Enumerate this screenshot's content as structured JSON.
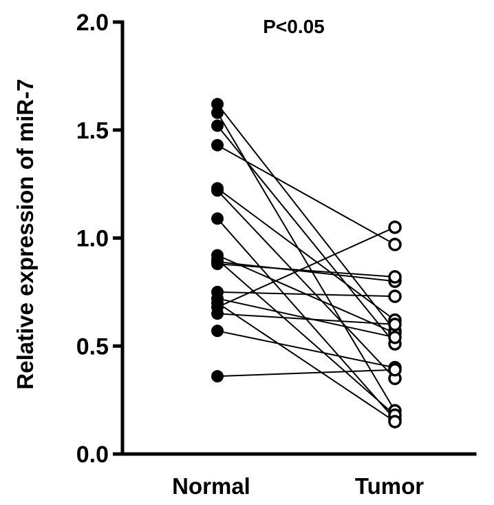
{
  "chart_data": {
    "type": "scatter",
    "subtype": "paired-dot-plot",
    "title": "",
    "annotation": "P<0.05",
    "xlabel": "",
    "ylabel": "Relative expression of miR-7",
    "categories": [
      "Normal",
      "Tumor"
    ],
    "ylim": [
      0,
      2.0
    ],
    "yticks": [
      0.0,
      0.5,
      1.0,
      1.5,
      2.0
    ],
    "ytick_labels": [
      "0.0",
      "0.5",
      "1.0",
      "1.5",
      "2.0"
    ],
    "grid": false,
    "legend": "none",
    "marker_styles": {
      "Normal": "filled-circle",
      "Tumor": "open-circle"
    },
    "color": "#000000",
    "pairs": [
      {
        "normal": 1.62,
        "tumor": 0.57
      },
      {
        "normal": 1.58,
        "tumor": 0.2
      },
      {
        "normal": 1.52,
        "tumor": 0.51
      },
      {
        "normal": 1.43,
        "tumor": 0.97
      },
      {
        "normal": 1.23,
        "tumor": 0.62
      },
      {
        "normal": 1.22,
        "tumor": 0.35
      },
      {
        "normal": 1.09,
        "tumor": 0.16
      },
      {
        "normal": 0.92,
        "tumor": 0.56
      },
      {
        "normal": 0.9,
        "tumor": 0.18
      },
      {
        "normal": 0.89,
        "tumor": 0.8
      },
      {
        "normal": 0.88,
        "tumor": 0.82
      },
      {
        "normal": 0.75,
        "tumor": 0.73
      },
      {
        "normal": 0.72,
        "tumor": 0.54
      },
      {
        "normal": 0.7,
        "tumor": 0.15
      },
      {
        "normal": 0.68,
        "tumor": 1.05
      },
      {
        "normal": 0.65,
        "tumor": 0.6
      },
      {
        "normal": 0.57,
        "tumor": 0.4
      },
      {
        "normal": 0.36,
        "tumor": 0.39
      }
    ]
  }
}
